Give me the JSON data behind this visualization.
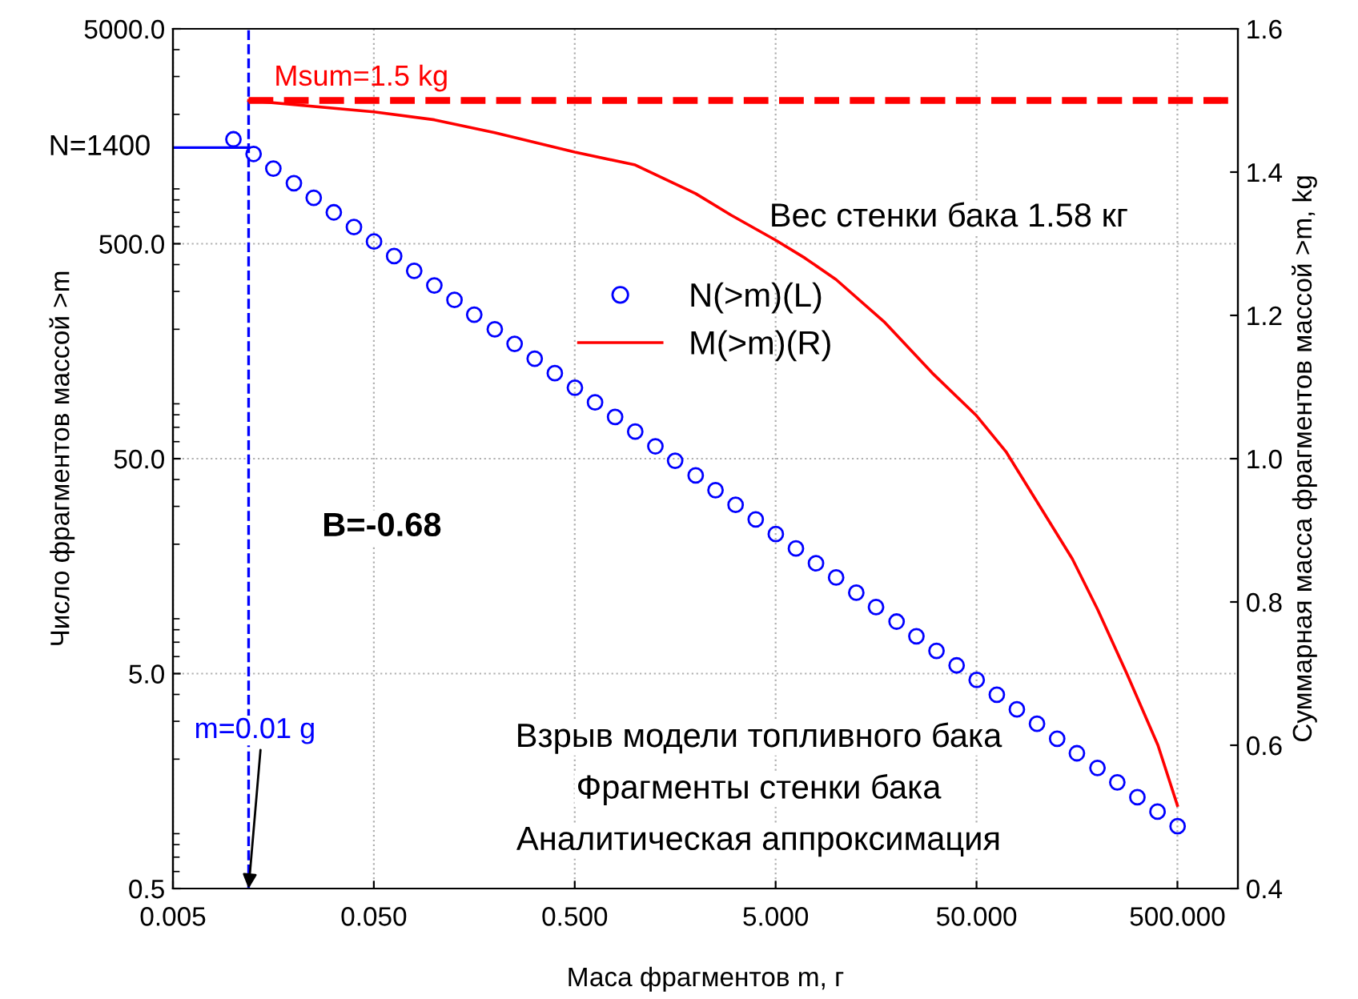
{
  "chart_data": {
    "type": "scatter",
    "xlabel": "Маса фрагментов m, г",
    "ylabel": "Число фрагментов массой >m",
    "y2label": "Суммарная масса фрагментов массой >m, kg",
    "log": "xy",
    "xlim": [
      0.005,
      1000
    ],
    "ylim": [
      0.5,
      5000
    ],
    "y2lim": [
      0.4,
      1.6
    ],
    "xticks": [
      {
        "value": 0.005,
        "label": "0.005"
      },
      {
        "value": 0.05,
        "label": "0.050"
      },
      {
        "value": 0.5,
        "label": "0.500"
      },
      {
        "value": 5,
        "label": "5.000"
      },
      {
        "value": 50,
        "label": "50.000"
      },
      {
        "value": 500,
        "label": "500.000"
      }
    ],
    "yticks": [
      0.5,
      {
        "value": 5,
        "label": "5.0"
      },
      {
        "value": 50,
        "label": "50.0"
      },
      {
        "value": 500,
        "label": "500.0"
      },
      {
        "value": 5000,
        "label": "5000.0"
      }
    ],
    "y2ticks": [
      0.4,
      0.6,
      0.8,
      {
        "value": 1.0,
        "label": "1.0"
      },
      1.2,
      1.4,
      1.6
    ],
    "grid": true,
    "legend": "top",
    "series": [
      {
        "name": "N(>m)(L)",
        "marker": "circle",
        "color": "#0000ff",
        "x": [
          0.01,
          0.0126,
          0.0158,
          0.02,
          0.0251,
          0.0316,
          0.0398,
          0.0501,
          0.0631,
          0.0794,
          0.1,
          0.126,
          0.158,
          0.2,
          0.251,
          0.316,
          0.398,
          0.501,
          0.631,
          0.794,
          1,
          1.26,
          1.58,
          2,
          2.51,
          3.16,
          3.98,
          5.01,
          6.31,
          7.94,
          10,
          12.6,
          15.8,
          20,
          25.1,
          31.6,
          39.8,
          50.1,
          63.1,
          79.4,
          100,
          126,
          158,
          200,
          251,
          316,
          398,
          501
        ],
        "values": [
          1531,
          1309,
          1119,
          957,
          818,
          700,
          598,
          512,
          438,
          374,
          320,
          274,
          234,
          200,
          171,
          146,
          125,
          107,
          91.4,
          78.2,
          66.8,
          57.1,
          48.9,
          41.8,
          35.7,
          30.5,
          26.1,
          22.3,
          19.1,
          16.3,
          14.0,
          11.9,
          10.2,
          8.73,
          7.46,
          6.38,
          5.46,
          4.67,
          3.99,
          3.41,
          2.92,
          2.49,
          2.13,
          1.82,
          1.56,
          1.33,
          1.14,
          0.975
        ]
      },
      {
        "name": "M(>m)(R)",
        "type": "line",
        "axis": "y2",
        "color": "#ff0000",
        "line_style": "solid",
        "x": [
          0.0119,
          0.05,
          0.1,
          0.2,
          0.5,
          1,
          2,
          3,
          5,
          7,
          10,
          17.5,
          30,
          50,
          70,
          100,
          150,
          200,
          280,
          400,
          500
        ],
        "values": [
          1.5,
          1.484,
          1.473,
          1.455,
          1.428,
          1.41,
          1.37,
          1.34,
          1.305,
          1.28,
          1.25,
          1.19,
          1.12,
          1.06,
          1.01,
          0.94,
          0.86,
          0.79,
          0.7,
          0.6,
          0.516
        ]
      }
    ],
    "ref_lines": [
      {
        "axis": "x",
        "value": 0.0119,
        "label": "m=0.01 g",
        "color": "#0000ff",
        "line_style": "dashed"
      },
      {
        "axis": "y",
        "value": 1400,
        "label": "N=1400",
        "color": "#0000ff",
        "line_style": "solid"
      },
      {
        "axis": "y2",
        "value": 1.5,
        "label": "Msum=1.5 kg",
        "color": "#ff0000",
        "line_style": "dashed"
      }
    ],
    "annotations": [
      "Вес стенки бака 1.58 кг",
      "B=-0.68",
      "Взрыв модели топливного бака",
      "Фрагменты стенки бака",
      "Аналитическая аппроксимация"
    ]
  }
}
